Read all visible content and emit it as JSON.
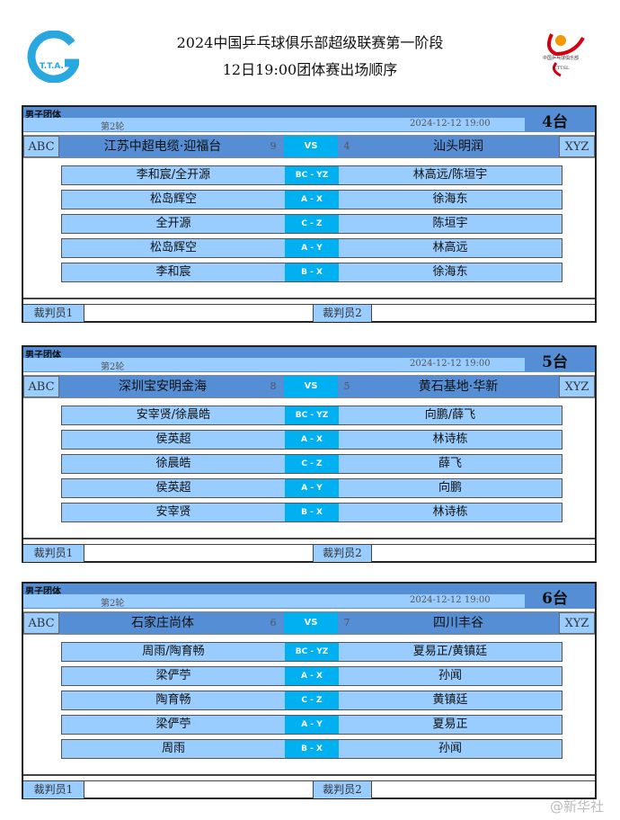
{
  "header": {
    "title": "2024中国乒乓球俱乐部超级联赛第一阶段",
    "subtitle": "12日19:00团体赛出场顺序",
    "logo_left_text": "T.T.A.",
    "logo_right_text": "中国乒乓球俱乐部 超级联赛 CTTSL"
  },
  "colors": {
    "header_blue": "#558ed5",
    "light_blue": "#99ccff",
    "vs_cyan": "#00b0f0"
  },
  "panels": [
    {
      "category": "男子团体",
      "round": "第2轮",
      "datetime": "2024-12-12 19:00",
      "table": "4台",
      "left_code": "ABC",
      "right_code": "XYZ",
      "left_team": "江苏中超电缆·迎福台",
      "left_score": "9",
      "vs": "VS",
      "right_score": "4",
      "right_team": "汕头明润",
      "matches": [
        {
          "left": "李和宸/全开源",
          "code": "BC - YZ",
          "right": "林高远/陈垣宇"
        },
        {
          "left": "松岛辉空",
          "code": "A - X",
          "right": "徐海东"
        },
        {
          "left": "全开源",
          "code": "C - Z",
          "right": "陈垣宇"
        },
        {
          "left": "松岛辉空",
          "code": "A - Y",
          "right": "林高远"
        },
        {
          "left": "李和宸",
          "code": "B - X",
          "right": "徐海东"
        }
      ],
      "referee1": "裁判员1",
      "referee2": "裁判员2"
    },
    {
      "category": "男子团体",
      "round": "第2轮",
      "datetime": "2024-12-12 19:00",
      "table": "5台",
      "left_code": "ABC",
      "right_code": "XYZ",
      "left_team": "深圳宝安明金海",
      "left_score": "8",
      "vs": "VS",
      "right_score": "5",
      "right_team": "黄石基地·华新",
      "matches": [
        {
          "left": "安宰贤/徐晨皓",
          "code": "BC - YZ",
          "right": "向鹏/薛飞"
        },
        {
          "left": "侯英超",
          "code": "A - X",
          "right": "林诗栋"
        },
        {
          "left": "徐晨皓",
          "code": "C - Z",
          "right": "薛飞"
        },
        {
          "left": "侯英超",
          "code": "A - Y",
          "right": "向鹏"
        },
        {
          "left": "安宰贤",
          "code": "B - X",
          "right": "林诗栋"
        }
      ],
      "referee1": "裁判员1",
      "referee2": "裁判员2"
    },
    {
      "category": "男子团体",
      "round": "第2轮",
      "datetime": "2024-12-12 19:00",
      "table": "6台",
      "left_code": "ABC",
      "right_code": "XYZ",
      "left_team": "石家庄尚体",
      "left_score": "6",
      "vs": "VS",
      "right_score": "7",
      "right_team": "四川丰谷",
      "matches": [
        {
          "left": "周雨/陶育畅",
          "code": "BC - YZ",
          "right": "夏易正/黄镇廷"
        },
        {
          "left": "梁俨苧",
          "code": "A - X",
          "right": "孙闻"
        },
        {
          "left": "陶育畅",
          "code": "C - Z",
          "right": "黄镇廷"
        },
        {
          "left": "梁俨苧",
          "code": "A - Y",
          "right": "夏易正"
        },
        {
          "left": "周雨",
          "code": "B - X",
          "right": "孙闻"
        }
      ],
      "referee1": "裁判员1",
      "referee2": "裁判员2"
    }
  ],
  "watermark": "@新华社"
}
